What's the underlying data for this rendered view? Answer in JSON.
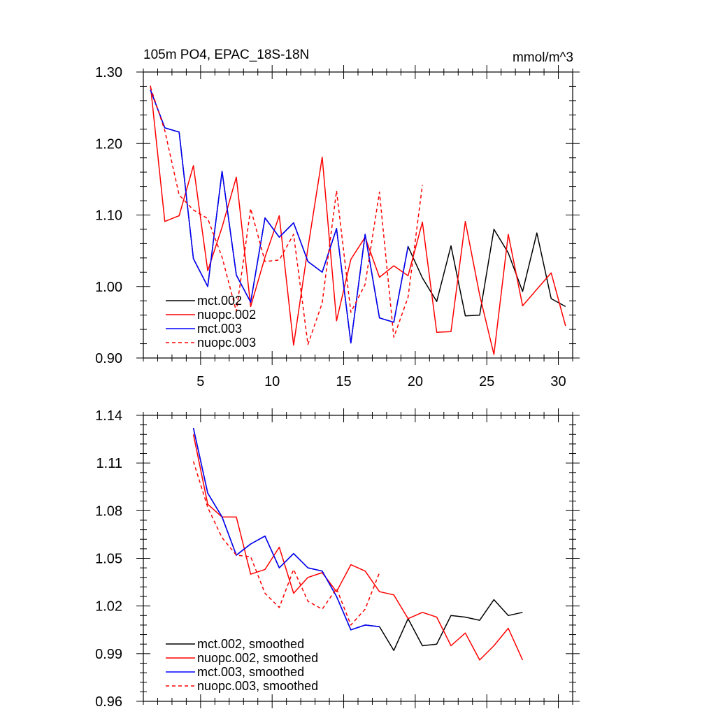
{
  "colors": {
    "mct_002": "#000000",
    "nuopc_002": "#ff0000",
    "mct_003": "#0000ff",
    "nuopc_003": "#ff0000"
  },
  "chart_data": [
    {
      "type": "line",
      "title": "105m PO4, EPAC_18S-18N",
      "units": "mmol/m^3",
      "xlim": [
        1,
        31
      ],
      "ylim": [
        0.9,
        1.3
      ],
      "xticks": [
        5,
        10,
        15,
        20,
        25,
        30
      ],
      "xtick_labels": [
        "5",
        "10",
        "15",
        "20",
        "25",
        "30"
      ],
      "yticks": [
        0.9,
        1.0,
        1.1,
        1.2,
        1.3
      ],
      "ytick_labels": [
        "0.90",
        "1.00",
        "1.10",
        "1.20",
        "1.30"
      ],
      "series": [
        {
          "name": "mct.002",
          "color": "#000000",
          "dash": "solid",
          "x": [
            1.5,
            2.5,
            3.5,
            4.5,
            5.5,
            6.5,
            7.5,
            8.5,
            9.5,
            10.5,
            11.5,
            12.5,
            13.5,
            14.5,
            15.5,
            16.5,
            17.5,
            18.5,
            19.5,
            20.5,
            21.5,
            22.5,
            23.5,
            24.5,
            25.5,
            26.5,
            27.5,
            28.5,
            29.5,
            30.5
          ],
          "values": [
            1.275,
            1.222,
            1.216,
            1.039,
            1.0,
            1.161,
            1.016,
            0.978,
            1.096,
            1.069,
            1.089,
            1.035,
            1.02,
            1.081,
            0.921,
            1.073,
            0.956,
            0.95,
            1.056,
            1.012,
            0.979,
            1.057,
            0.959,
            0.96,
            1.08,
            1.047,
            0.993,
            1.075,
            0.983,
            0.972
          ]
        },
        {
          "name": "nuopc.002",
          "color": "#ff0000",
          "dash": "solid",
          "x": [
            1.5,
            2.5,
            3.5,
            4.5,
            5.5,
            6.5,
            7.5,
            8.5,
            9.5,
            10.5,
            11.5,
            12.5,
            13.5,
            14.5,
            15.5,
            16.5,
            17.5,
            18.5,
            19.5,
            20.5,
            21.5,
            22.5,
            23.5,
            24.5,
            25.5,
            26.5,
            27.5,
            28.5,
            29.5,
            30.5
          ],
          "values": [
            1.281,
            1.091,
            1.099,
            1.169,
            1.022,
            1.083,
            1.153,
            0.972,
            1.041,
            1.099,
            0.918,
            1.054,
            1.181,
            0.952,
            1.038,
            1.069,
            1.013,
            1.029,
            1.015,
            1.09,
            0.936,
            0.937,
            1.091,
            0.988,
            0.905,
            1.073,
            0.973,
            0.996,
            1.019,
            0.945
          ]
        },
        {
          "name": "mct.003",
          "color": "#0000ff",
          "dash": "solid",
          "x": [
            1.5,
            2.5,
            3.5,
            4.5,
            5.5,
            6.5,
            7.5,
            8.5,
            9.5,
            10.5,
            11.5,
            12.5,
            13.5,
            14.5,
            15.5,
            16.5,
            17.5,
            18.5,
            19.5
          ],
          "values": [
            1.275,
            1.222,
            1.216,
            1.039,
            1.0,
            1.161,
            1.016,
            0.978,
            1.096,
            1.069,
            1.089,
            1.035,
            1.02,
            1.081,
            0.921,
            1.073,
            0.956,
            0.95,
            1.056
          ]
        },
        {
          "name": "nuopc.003",
          "color": "#ff0000",
          "dash": "dashed",
          "x": [
            1.5,
            2.5,
            3.5,
            4.5,
            5.5,
            6.5,
            7.5,
            8.5,
            9.5,
            10.5,
            11.5,
            12.5,
            13.5,
            14.5,
            15.5,
            16.5,
            17.5,
            18.5,
            19.5,
            20.5
          ],
          "values": [
            1.279,
            1.218,
            1.128,
            1.107,
            1.095,
            1.041,
            0.965,
            1.109,
            1.035,
            1.037,
            1.073,
            0.919,
            0.977,
            1.134,
            0.964,
            1.003,
            1.132,
            0.929,
            0.985,
            1.142
          ]
        }
      ]
    },
    {
      "type": "line",
      "title": "",
      "xlim": [
        1,
        31
      ],
      "ylim": [
        0.96,
        1.14
      ],
      "xticks": [
        5,
        10,
        15,
        20,
        25,
        30
      ],
      "xtick_labels": [],
      "yticks": [
        0.96,
        0.99,
        1.02,
        1.05,
        1.08,
        1.11,
        1.14
      ],
      "ytick_labels": [
        "0.96",
        "0.99",
        "1.02",
        "1.05",
        "1.08",
        "1.11",
        "1.14"
      ],
      "series": [
        {
          "name": "mct.002, smoothed",
          "color": "#000000",
          "dash": "solid",
          "x": [
            4.5,
            5.5,
            6.5,
            7.5,
            8.5,
            9.5,
            10.5,
            11.5,
            12.5,
            13.5,
            14.5,
            15.5,
            16.5,
            17.5,
            18.5,
            19.5,
            20.5,
            21.5,
            22.5,
            23.5,
            24.5,
            25.5,
            26.5,
            27.5
          ],
          "values": [
            1.132,
            1.091,
            1.076,
            1.052,
            1.059,
            1.064,
            1.044,
            1.053,
            1.044,
            1.042,
            1.026,
            1.005,
            1.008,
            1.007,
            0.992,
            1.012,
            0.995,
            0.996,
            1.014,
            1.013,
            1.011,
            1.024,
            1.014,
            1.016
          ]
        },
        {
          "name": "nuopc.002, smoothed",
          "color": "#ff0000",
          "dash": "solid",
          "x": [
            4.5,
            5.5,
            6.5,
            7.5,
            8.5,
            9.5,
            10.5,
            11.5,
            12.5,
            13.5,
            14.5,
            15.5,
            16.5,
            17.5,
            18.5,
            19.5,
            20.5,
            21.5,
            22.5,
            23.5,
            24.5,
            25.5,
            26.5,
            27.5
          ],
          "values": [
            1.128,
            1.084,
            1.076,
            1.076,
            1.04,
            1.043,
            1.057,
            1.028,
            1.038,
            1.041,
            1.029,
            1.046,
            1.042,
            1.029,
            1.027,
            1.012,
            1.016,
            1.013,
            0.995,
            1.003,
            0.986,
            0.995,
            1.006,
            0.986
          ]
        },
        {
          "name": "mct.003, smoothed",
          "color": "#0000ff",
          "dash": "solid",
          "x": [
            4.5,
            5.5,
            6.5,
            7.5,
            8.5,
            9.5,
            10.5,
            11.5,
            12.5,
            13.5,
            14.5,
            15.5,
            16.5,
            17.5
          ],
          "values": [
            1.132,
            1.091,
            1.076,
            1.052,
            1.059,
            1.064,
            1.044,
            1.053,
            1.044,
            1.042,
            1.026,
            1.005,
            1.008,
            1.007
          ]
        },
        {
          "name": "nuopc.003, smoothed",
          "color": "#ff0000",
          "dash": "dashed",
          "x": [
            4.5,
            5.5,
            6.5,
            7.5,
            8.5,
            9.5,
            10.5,
            11.5,
            12.5,
            13.5,
            14.5,
            15.5,
            16.5,
            17.5
          ],
          "values": [
            1.111,
            1.082,
            1.063,
            1.052,
            1.051,
            1.028,
            1.019,
            1.043,
            1.023,
            1.018,
            1.031,
            1.008,
            1.018,
            1.041
          ]
        }
      ]
    }
  ]
}
